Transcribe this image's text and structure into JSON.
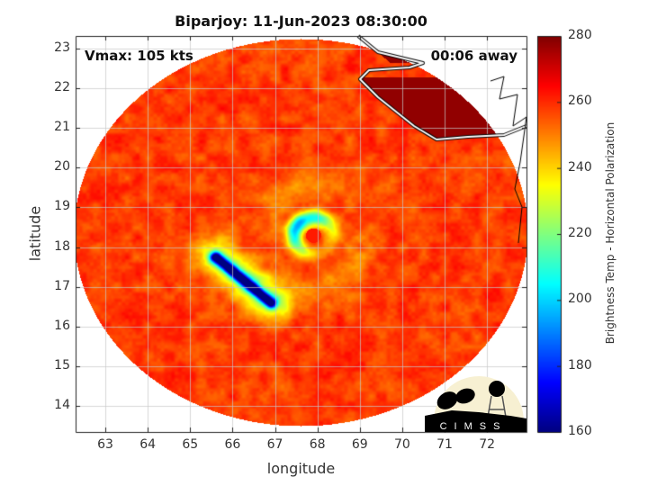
{
  "chart_data": {
    "type": "heatmap",
    "title": "Biparjoy: 11-Jun-2023 08:30:00",
    "xlabel": "longitude",
    "ylabel": "latitude",
    "xlim": [
      62.3,
      72.93
    ],
    "ylim": [
      13.34,
      23.32
    ],
    "xticks": [
      "63",
      "64",
      "65",
      "66",
      "67",
      "68",
      "69",
      "70",
      "71",
      "72"
    ],
    "yticks": [
      "14",
      "15",
      "16",
      "17",
      "18",
      "19",
      "20",
      "21",
      "22",
      "23"
    ],
    "grid": true,
    "annotations": {
      "left": "Vmax: 105 kts",
      "right": "00:06 away"
    },
    "colorbar": {
      "label": "Brightness Temp - Horizontal Polarization",
      "range": [
        160,
        280
      ],
      "ticks": [
        "160",
        "180",
        "200",
        "220",
        "240",
        "260",
        "280"
      ],
      "colormap": "jet"
    },
    "storm_center": {
      "lon": 67.9,
      "lat": 18.3
    },
    "cold_band": {
      "from": {
        "lon": 65.6,
        "lat": 17.75
      },
      "to": {
        "lon": 66.9,
        "lat": 16.6
      },
      "min_temp": 165
    },
    "background_temp": 258,
    "land_temp": 280
  },
  "logo": {
    "text": "CIMSS"
  }
}
